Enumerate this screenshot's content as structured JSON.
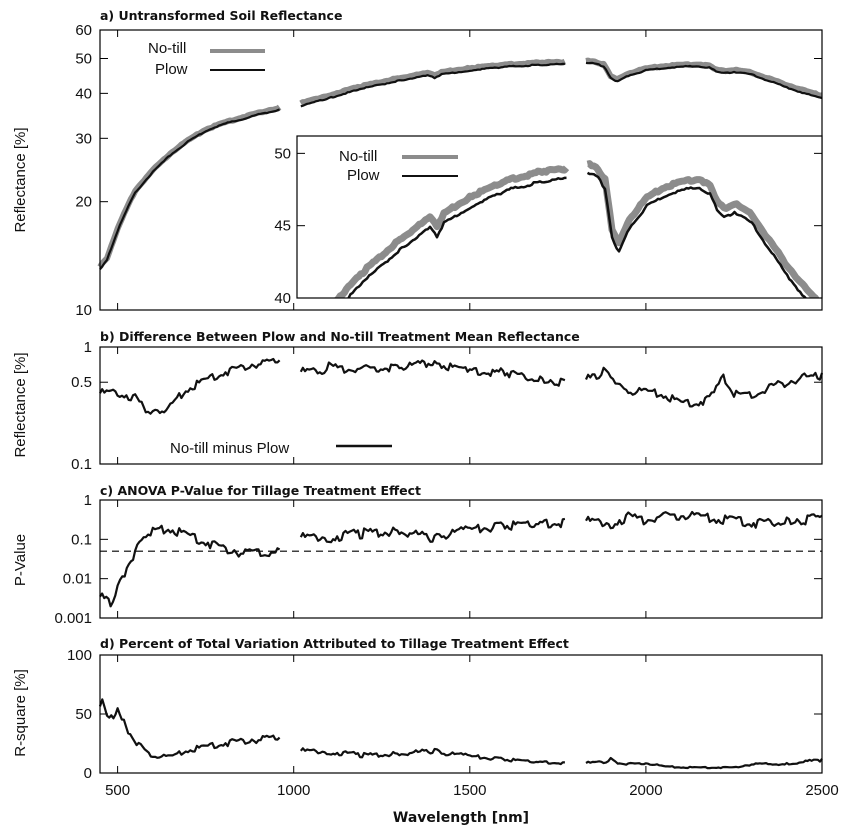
{
  "figure": {
    "xlabel": "Wavelength [nm]"
  },
  "chart_data": [
    {
      "id": "a",
      "type": "line",
      "title": "a) Untransformed Soil Reflectance",
      "ylabel": "Reflectance [%]",
      "xlim": [
        450,
        2500
      ],
      "ylim": [
        10,
        60
      ],
      "yscale": "log",
      "yticks": [
        10,
        20,
        30,
        40,
        50,
        60
      ],
      "gaps_nm": [
        [
          960,
          1020
        ],
        [
          1770,
          1830
        ]
      ],
      "legend": {
        "position": "top-left",
        "entries": [
          "No-till",
          "Plow"
        ]
      },
      "x": [
        450,
        470,
        500,
        550,
        600,
        650,
        700,
        750,
        800,
        850,
        900,
        960,
        1020,
        1100,
        1200,
        1300,
        1380,
        1400,
        1420,
        1500,
        1600,
        1700,
        1770,
        1830,
        1860,
        1880,
        1900,
        1920,
        1950,
        2000,
        2050,
        2100,
        2150,
        2180,
        2200,
        2220,
        2250,
        2300,
        2350,
        2400,
        2450,
        2500
      ],
      "series": [
        {
          "name": "No-till",
          "color": "#8c8c8c",
          "values": [
            13.2,
            14.0,
            16.8,
            21.5,
            24.5,
            27.3,
            29.7,
            31.8,
            33.2,
            34.3,
            35.4,
            36.6,
            37.6,
            39.6,
            42.1,
            44.2,
            45.6,
            45.0,
            45.9,
            47.1,
            48.2,
            48.8,
            49.0,
            49.3,
            49.0,
            48.2,
            44.8,
            43.8,
            45.5,
            47.0,
            47.7,
            48.1,
            48.3,
            47.8,
            46.8,
            46.2,
            46.6,
            45.8,
            44.0,
            42.3,
            40.8,
            39.5
          ]
        },
        {
          "name": "Plow",
          "color": "#111111",
          "values": [
            13.0,
            13.8,
            16.6,
            21.2,
            24.2,
            27.0,
            29.4,
            31.5,
            32.9,
            33.9,
            35.0,
            36.1,
            36.9,
            38.9,
            41.4,
            43.5,
            44.9,
            44.3,
            45.2,
            46.4,
            47.5,
            48.1,
            48.3,
            48.7,
            48.4,
            47.6,
            44.2,
            43.2,
            44.9,
            46.4,
            47.1,
            47.5,
            47.7,
            47.2,
            46.2,
            45.6,
            46.0,
            45.2,
            43.4,
            41.6,
            40.1,
            38.8
          ]
        }
      ]
    },
    {
      "id": "a-inset",
      "type": "line",
      "xlim": [
        1000,
        2500
      ],
      "ylim": [
        40,
        51.2
      ],
      "yticks": [
        40,
        45,
        50
      ],
      "gaps_nm": [
        [
          1770,
          1830
        ]
      ],
      "legend": {
        "position": "top-left",
        "entries": [
          "No-till",
          "Plow"
        ]
      },
      "x": [
        1000,
        1100,
        1200,
        1300,
        1380,
        1400,
        1420,
        1500,
        1600,
        1700,
        1770,
        1830,
        1860,
        1880,
        1900,
        1920,
        1950,
        2000,
        2050,
        2100,
        2150,
        2180,
        2200,
        2220,
        2250,
        2300,
        2350,
        2400,
        2450,
        2500
      ],
      "series": [
        {
          "name": "No-till",
          "color": "#8c8c8c",
          "values": [
            37.6,
            39.6,
            42.1,
            44.2,
            45.6,
            45.0,
            45.9,
            47.1,
            48.2,
            48.8,
            49.0,
            49.3,
            49.0,
            48.2,
            44.8,
            43.8,
            45.5,
            47.0,
            47.7,
            48.1,
            48.3,
            47.8,
            46.8,
            46.2,
            46.6,
            45.8,
            44.0,
            42.3,
            40.8,
            39.5
          ]
        },
        {
          "name": "Plow",
          "color": "#111111",
          "values": [
            36.9,
            38.9,
            41.4,
            43.5,
            44.9,
            44.3,
            45.2,
            46.4,
            47.5,
            48.1,
            48.3,
            48.7,
            48.4,
            47.6,
            44.2,
            43.2,
            44.9,
            46.4,
            47.1,
            47.5,
            47.7,
            47.2,
            46.2,
            45.6,
            46.0,
            45.2,
            43.4,
            41.6,
            40.1,
            38.8
          ]
        }
      ]
    },
    {
      "id": "b",
      "type": "line",
      "title": "b) Difference Between Plow and No-till Treatment Mean Reflectance",
      "ylabel": "Reflectance [%]",
      "xlim": [
        450,
        2500
      ],
      "ylim": [
        0.1,
        1
      ],
      "yscale": "log",
      "yticks": [
        0.1,
        0.5,
        1
      ],
      "yticklabels": [
        "0.1",
        "0.5",
        "1"
      ],
      "gaps_nm": [
        [
          960,
          1020
        ],
        [
          1770,
          1830
        ]
      ],
      "legend": {
        "position": "bottom-center",
        "entries": [
          "No-till minus Plow"
        ]
      },
      "x": [
        450,
        500,
        550,
        580,
        600,
        620,
        650,
        700,
        750,
        800,
        850,
        900,
        960,
        1020,
        1080,
        1100,
        1150,
        1200,
        1300,
        1400,
        1420,
        1500,
        1600,
        1700,
        1770,
        1830,
        1860,
        1880,
        1900,
        1920,
        1950,
        2000,
        2050,
        2100,
        2150,
        2180,
        2200,
        2220,
        2250,
        2300,
        2350,
        2400,
        2450,
        2500
      ],
      "series": [
        {
          "name": "No-till minus Plow",
          "color": "#111111",
          "values": [
            0.42,
            0.43,
            0.38,
            0.3,
            0.28,
            0.29,
            0.33,
            0.45,
            0.55,
            0.63,
            0.7,
            0.76,
            0.77,
            0.64,
            0.66,
            0.71,
            0.67,
            0.68,
            0.7,
            0.76,
            0.72,
            0.66,
            0.63,
            0.56,
            0.52,
            0.55,
            0.6,
            0.64,
            0.6,
            0.48,
            0.43,
            0.44,
            0.4,
            0.35,
            0.35,
            0.38,
            0.5,
            0.56,
            0.42,
            0.4,
            0.47,
            0.52,
            0.58,
            0.6
          ]
        }
      ]
    },
    {
      "id": "c",
      "type": "line",
      "title": "c) ANOVA P-Value for Tillage Treatment Effect",
      "ylabel": "P-Value",
      "xlim": [
        450,
        2500
      ],
      "ylim": [
        0.001,
        1
      ],
      "yscale": "log",
      "yticks": [
        0.001,
        0.01,
        0.1,
        1
      ],
      "yticklabels": [
        "0.001",
        "0.01",
        "0.1",
        "1"
      ],
      "threshold": 0.05,
      "gaps_nm": [
        [
          960,
          1020
        ],
        [
          1770,
          1830
        ]
      ],
      "x": [
        450,
        480,
        500,
        520,
        550,
        580,
        600,
        650,
        700,
        750,
        800,
        850,
        900,
        960,
        1020,
        1100,
        1200,
        1300,
        1400,
        1420,
        1500,
        1600,
        1700,
        1770,
        1830,
        1900,
        1950,
        2000,
        2050,
        2100,
        2150,
        2200,
        2250,
        2300,
        2400,
        2500
      ],
      "series": [
        {
          "name": "P-Value",
          "color": "#111111",
          "values": [
            0.004,
            0.003,
            0.006,
            0.015,
            0.05,
            0.14,
            0.2,
            0.2,
            0.15,
            0.1,
            0.07,
            0.055,
            0.05,
            0.055,
            0.13,
            0.13,
            0.17,
            0.18,
            0.12,
            0.14,
            0.2,
            0.25,
            0.3,
            0.33,
            0.34,
            0.29,
            0.43,
            0.35,
            0.45,
            0.47,
            0.46,
            0.35,
            0.39,
            0.3,
            0.36,
            0.4
          ]
        }
      ]
    },
    {
      "id": "d",
      "type": "line",
      "title": "d) Percent of Total Variation Attributed to Tillage Treatment Effect",
      "ylabel": "R-square [%]",
      "xlabel": "Wavelength [nm]",
      "xlim": [
        450,
        2500
      ],
      "ylim": [
        0,
        100
      ],
      "yticks": [
        0,
        50,
        100
      ],
      "xticks": [
        500,
        1000,
        1500,
        2000,
        2500
      ],
      "gaps_nm": [
        [
          960,
          1020
        ],
        [
          1770,
          1830
        ]
      ],
      "x": [
        450,
        470,
        500,
        530,
        560,
        600,
        650,
        700,
        750,
        800,
        850,
        900,
        960,
        1020,
        1100,
        1200,
        1300,
        1400,
        1420,
        1500,
        1600,
        1700,
        1770,
        1830,
        1880,
        1900,
        1920,
        1950,
        2000,
        2050,
        2100,
        2150,
        2200,
        2250,
        2300,
        2400,
        2500
      ],
      "series": [
        {
          "name": "R-square",
          "color": "#111111",
          "values": [
            60,
            58,
            52,
            38,
            25,
            15,
            15,
            20,
            24,
            27,
            29,
            31,
            30,
            20,
            19,
            16,
            17,
            20,
            18,
            15,
            12,
            10,
            9,
            9,
            10,
            12,
            9,
            8,
            9,
            6,
            5,
            5,
            5,
            5,
            8,
            8,
            12
          ]
        }
      ]
    }
  ]
}
